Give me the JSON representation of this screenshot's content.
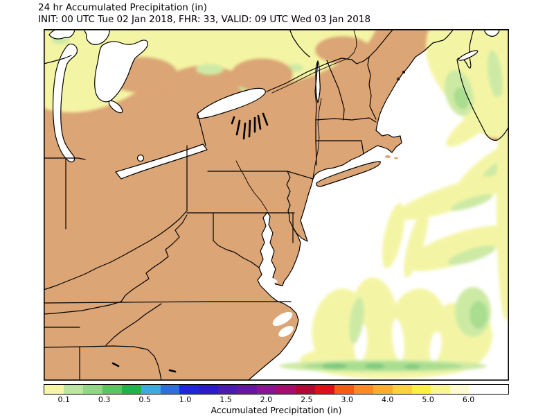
{
  "title": {
    "line1": "24 hr Accumulated Precipitation (in)",
    "line2": "INIT: 00 UTC Tue 02 Jan 2018, FHR: 33, VALID: 09 UTC Wed 03 Jan 2018"
  },
  "colorbar": {
    "label": "Accumulated Precipitation (in)",
    "total_units": 23,
    "tick_labels": [
      "0.1",
      "0.3",
      "0.5",
      "1.0",
      "1.5",
      "2.0",
      "2.5",
      "3.0",
      "4.0",
      "5.0",
      "6.0"
    ],
    "tick_units": [
      1,
      3,
      5,
      7,
      9,
      11,
      13,
      15,
      17,
      19,
      21
    ],
    "segment_colors": [
      "#f6f6a5",
      "#bce4a2",
      "#94d687",
      "#5ac460",
      "#22b14c",
      "#41aadc",
      "#2f6fd8",
      "#2026dd",
      "#2c1dc2",
      "#4a1cab",
      "#6617a0",
      "#891591",
      "#a40f6e",
      "#ad0a35",
      "#e20f18",
      "#f55b16",
      "#fa8b28",
      "#fbad33",
      "#fcd23a",
      "#faf13e",
      "#f8f694",
      "#fbfad2",
      "#ffffff"
    ]
  },
  "map": {
    "land_color": "#dca575",
    "water_color": "#ffffff",
    "outline_color": "#000000",
    "precip_trace_color": "#f4f5a4",
    "precip_light_green": "#cdeaa5",
    "precip_green": "#a9dd90",
    "precip_deep_green": "#7fca80"
  }
}
